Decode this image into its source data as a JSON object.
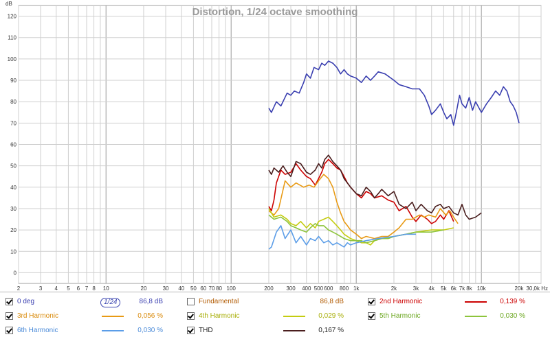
{
  "chart_data": {
    "type": "line",
    "title": "Distortion, 1/24 octave smoothing",
    "ylabel": "dB",
    "xunit": "Hz",
    "xscale": "log",
    "xlim": [
      2,
      30000
    ],
    "ylim": [
      -5,
      125
    ],
    "grid": true,
    "xticks": [
      2,
      3,
      4,
      5,
      6,
      7,
      8,
      10,
      20,
      30,
      40,
      50,
      60,
      70,
      80,
      100,
      200,
      300,
      400,
      500,
      600,
      800,
      1000,
      2000,
      3000,
      4000,
      5000,
      6000,
      7000,
      8000,
      10000,
      20000,
      30000
    ],
    "xtick_labels": [
      "2",
      "3",
      "4",
      "5",
      "6",
      "7",
      "8",
      "10",
      "20",
      "30",
      "40",
      "50",
      "60",
      "70",
      "80",
      "100",
      "200",
      "300",
      "400",
      "500",
      "600",
      "800",
      "1k",
      "2k",
      "3k",
      "4k",
      "5k",
      "6k",
      "7k",
      "8k",
      "10k",
      "20k",
      "30,0k Hz"
    ],
    "yticks": [
      0,
      10,
      20,
      30,
      40,
      50,
      60,
      70,
      80,
      90,
      100,
      110,
      120
    ],
    "series": [
      {
        "name": "0 deg",
        "color": "#3a3fb0",
        "points": [
          [
            200,
            77
          ],
          [
            210,
            75
          ],
          [
            230,
            80
          ],
          [
            250,
            78
          ],
          [
            280,
            84
          ],
          [
            300,
            83
          ],
          [
            320,
            85
          ],
          [
            350,
            84
          ],
          [
            380,
            89
          ],
          [
            400,
            93
          ],
          [
            430,
            91
          ],
          [
            460,
            96
          ],
          [
            500,
            95
          ],
          [
            530,
            98
          ],
          [
            560,
            97
          ],
          [
            600,
            99
          ],
          [
            650,
            98
          ],
          [
            700,
            96
          ],
          [
            750,
            93
          ],
          [
            800,
            95
          ],
          [
            850,
            93
          ],
          [
            900,
            92
          ],
          [
            1000,
            91
          ],
          [
            1100,
            89
          ],
          [
            1200,
            92
          ],
          [
            1300,
            90
          ],
          [
            1400,
            92
          ],
          [
            1500,
            94
          ],
          [
            1700,
            93
          ],
          [
            2000,
            90
          ],
          [
            2200,
            88
          ],
          [
            2500,
            87
          ],
          [
            2800,
            86
          ],
          [
            3200,
            86
          ],
          [
            3500,
            83
          ],
          [
            3800,
            78
          ],
          [
            4000,
            74
          ],
          [
            4300,
            76
          ],
          [
            4700,
            79
          ],
          [
            5000,
            75
          ],
          [
            5300,
            72
          ],
          [
            5700,
            74
          ],
          [
            6000,
            69
          ],
          [
            6300,
            75
          ],
          [
            6700,
            83
          ],
          [
            7000,
            79
          ],
          [
            7500,
            77
          ],
          [
            8000,
            82
          ],
          [
            8500,
            76
          ],
          [
            9000,
            80
          ],
          [
            10000,
            75
          ],
          [
            11000,
            79
          ],
          [
            12000,
            82
          ],
          [
            13000,
            85
          ],
          [
            14000,
            83
          ],
          [
            15000,
            87
          ],
          [
            16000,
            85
          ],
          [
            17000,
            80
          ],
          [
            18000,
            78
          ],
          [
            19000,
            75
          ],
          [
            20000,
            70
          ]
        ]
      },
      {
        "name": "2nd Harmonic",
        "color": "#cc0000",
        "points": [
          [
            200,
            31
          ],
          [
            210,
            29
          ],
          [
            220,
            34
          ],
          [
            230,
            42
          ],
          [
            250,
            48
          ],
          [
            270,
            46
          ],
          [
            300,
            47
          ],
          [
            330,
            51
          ],
          [
            360,
            48
          ],
          [
            400,
            45
          ],
          [
            430,
            44
          ],
          [
            470,
            41
          ],
          [
            500,
            44
          ],
          [
            530,
            47
          ],
          [
            560,
            51
          ],
          [
            600,
            53
          ],
          [
            650,
            51
          ],
          [
            700,
            49
          ],
          [
            750,
            48
          ],
          [
            800,
            45
          ],
          [
            850,
            42
          ],
          [
            900,
            40
          ],
          [
            1000,
            37
          ],
          [
            1100,
            35
          ],
          [
            1200,
            38
          ],
          [
            1300,
            37
          ],
          [
            1400,
            35
          ],
          [
            1600,
            36
          ],
          [
            1800,
            34
          ],
          [
            2000,
            33
          ],
          [
            2200,
            29
          ],
          [
            2500,
            31
          ],
          [
            2800,
            26
          ],
          [
            3000,
            24
          ],
          [
            3300,
            27
          ],
          [
            3700,
            25
          ],
          [
            4000,
            23
          ],
          [
            4300,
            24
          ],
          [
            4700,
            27
          ],
          [
            5000,
            25
          ],
          [
            5500,
            29
          ],
          [
            6000,
            24
          ]
        ]
      },
      {
        "name": "3rd Harmonic",
        "color": "#e89a14",
        "points": [
          [
            200,
            29
          ],
          [
            220,
            27
          ],
          [
            240,
            30
          ],
          [
            270,
            43
          ],
          [
            300,
            40
          ],
          [
            330,
            42
          ],
          [
            380,
            40
          ],
          [
            420,
            41
          ],
          [
            460,
            40
          ],
          [
            500,
            43
          ],
          [
            550,
            46
          ],
          [
            600,
            44
          ],
          [
            650,
            40
          ],
          [
            700,
            33
          ],
          [
            750,
            28
          ],
          [
            800,
            24
          ],
          [
            850,
            22
          ],
          [
            900,
            20
          ],
          [
            1000,
            18
          ],
          [
            1100,
            16
          ],
          [
            1200,
            17
          ],
          [
            1400,
            16
          ],
          [
            1600,
            17
          ],
          [
            1800,
            17
          ],
          [
            2000,
            19
          ],
          [
            2200,
            21
          ],
          [
            2500,
            25
          ],
          [
            2800,
            25
          ],
          [
            3200,
            27
          ],
          [
            3500,
            26
          ],
          [
            3800,
            27
          ],
          [
            4300,
            26
          ],
          [
            4700,
            30
          ],
          [
            5200,
            27
          ],
          [
            5600,
            29
          ],
          [
            6000,
            26
          ],
          [
            6500,
            23
          ]
        ]
      },
      {
        "name": "4th Harmonic",
        "color": "#c4cc10",
        "points": [
          [
            200,
            30
          ],
          [
            220,
            26
          ],
          [
            250,
            27
          ],
          [
            280,
            25
          ],
          [
            300,
            23
          ],
          [
            330,
            22
          ],
          [
            360,
            24
          ],
          [
            400,
            21
          ],
          [
            430,
            23
          ],
          [
            470,
            21
          ],
          [
            500,
            24
          ],
          [
            550,
            25
          ],
          [
            600,
            26
          ],
          [
            650,
            24
          ],
          [
            700,
            22
          ],
          [
            750,
            20
          ],
          [
            800,
            18
          ],
          [
            900,
            16
          ],
          [
            1000,
            15
          ],
          [
            1100,
            14
          ],
          [
            1200,
            14
          ],
          [
            1300,
            13
          ],
          [
            1400,
            15
          ],
          [
            1600,
            16
          ],
          [
            1800,
            16
          ],
          [
            2000,
            17
          ],
          [
            2500,
            18
          ],
          [
            3000,
            19
          ],
          [
            4000,
            20
          ],
          [
            5000,
            20
          ],
          [
            6000,
            21
          ]
        ]
      },
      {
        "name": "5th Harmonic",
        "color": "#8dc43c",
        "points": [
          [
            200,
            27
          ],
          [
            220,
            25
          ],
          [
            250,
            26
          ],
          [
            280,
            24
          ],
          [
            300,
            22
          ],
          [
            330,
            21
          ],
          [
            360,
            20
          ],
          [
            400,
            19
          ],
          [
            430,
            21
          ],
          [
            470,
            23
          ],
          [
            500,
            22
          ],
          [
            550,
            22
          ],
          [
            600,
            20
          ],
          [
            650,
            19
          ],
          [
            700,
            18
          ],
          [
            750,
            17
          ],
          [
            800,
            16
          ],
          [
            900,
            15
          ],
          [
            1000,
            15
          ],
          [
            1100,
            15
          ],
          [
            1200,
            14
          ],
          [
            1400,
            15
          ],
          [
            1600,
            16
          ],
          [
            1800,
            16
          ],
          [
            2000,
            17
          ],
          [
            2500,
            18
          ],
          [
            3000,
            19
          ],
          [
            4000,
            19
          ],
          [
            5000,
            20
          ]
        ]
      },
      {
        "name": "6th Harmonic",
        "color": "#5b9de8",
        "points": [
          [
            200,
            11
          ],
          [
            210,
            12
          ],
          [
            230,
            19
          ],
          [
            250,
            22
          ],
          [
            270,
            16
          ],
          [
            300,
            20
          ],
          [
            330,
            14
          ],
          [
            360,
            17
          ],
          [
            400,
            13
          ],
          [
            430,
            16
          ],
          [
            470,
            15
          ],
          [
            500,
            17
          ],
          [
            550,
            14
          ],
          [
            600,
            15
          ],
          [
            650,
            13
          ],
          [
            700,
            14
          ],
          [
            750,
            13
          ],
          [
            800,
            12
          ],
          [
            850,
            14
          ],
          [
            900,
            13
          ],
          [
            1000,
            14
          ],
          [
            1200,
            15
          ],
          [
            1500,
            16
          ],
          [
            2000,
            17
          ],
          [
            2500,
            18
          ],
          [
            3000,
            18
          ]
        ]
      },
      {
        "name": "THD",
        "color": "#4a1e1e",
        "points": [
          [
            200,
            48
          ],
          [
            210,
            46
          ],
          [
            220,
            49
          ],
          [
            240,
            47
          ],
          [
            260,
            50
          ],
          [
            280,
            47
          ],
          [
            300,
            45
          ],
          [
            330,
            52
          ],
          [
            360,
            51
          ],
          [
            400,
            47
          ],
          [
            430,
            46
          ],
          [
            470,
            48
          ],
          [
            500,
            51
          ],
          [
            530,
            49
          ],
          [
            560,
            53
          ],
          [
            600,
            55
          ],
          [
            650,
            52
          ],
          [
            700,
            50
          ],
          [
            750,
            48
          ],
          [
            800,
            44
          ],
          [
            850,
            42
          ],
          [
            900,
            40
          ],
          [
            1000,
            37
          ],
          [
            1100,
            36
          ],
          [
            1200,
            40
          ],
          [
            1300,
            38
          ],
          [
            1400,
            35
          ],
          [
            1500,
            37
          ],
          [
            1600,
            39
          ],
          [
            1800,
            36
          ],
          [
            2000,
            38
          ],
          [
            2200,
            32
          ],
          [
            2500,
            30
          ],
          [
            2800,
            33
          ],
          [
            3000,
            29
          ],
          [
            3300,
            32
          ],
          [
            3700,
            29
          ],
          [
            4000,
            28
          ],
          [
            4300,
            31
          ],
          [
            4700,
            32
          ],
          [
            5000,
            30
          ],
          [
            5500,
            31
          ],
          [
            6000,
            28
          ],
          [
            6500,
            27
          ],
          [
            7000,
            32
          ],
          [
            7500,
            27
          ],
          [
            8000,
            25
          ],
          [
            9000,
            26
          ],
          [
            10000,
            28
          ]
        ]
      }
    ]
  },
  "legend": {
    "smoothing_label": "1/24",
    "items": [
      {
        "label": "0 deg",
        "checked": true,
        "value": "86,8 dB",
        "color": "#3a3fb0",
        "label_color": "#3a3fb0"
      },
      {
        "label": "Fundamental",
        "checked": false,
        "value": "86,8 dB",
        "color": "#c07a10",
        "label_color": "#b15a00"
      },
      {
        "label": "2nd Harmonic",
        "checked": true,
        "value": "0,139 %",
        "color": "#cc0000",
        "label_color": "#cc0000"
      },
      {
        "label": "3rd Harmonic",
        "checked": true,
        "value": "0,056 %",
        "color": "#e89a14",
        "label_color": "#d98a0a"
      },
      {
        "label": "4th Harmonic",
        "checked": true,
        "value": "0,029 %",
        "color": "#c4cc10",
        "label_color": "#a7ad05"
      },
      {
        "label": "5th Harmonic",
        "checked": true,
        "value": "0,030 %",
        "color": "#8dc43c",
        "label_color": "#6aa61e"
      },
      {
        "label": "6th Harmonic",
        "checked": true,
        "value": "0,030 %",
        "color": "#5b9de8",
        "label_color": "#4a8ad8"
      },
      {
        "label": "THD",
        "checked": true,
        "value": "0,167 %",
        "color": "#4a1e1e",
        "label_color": "#222222"
      }
    ]
  }
}
